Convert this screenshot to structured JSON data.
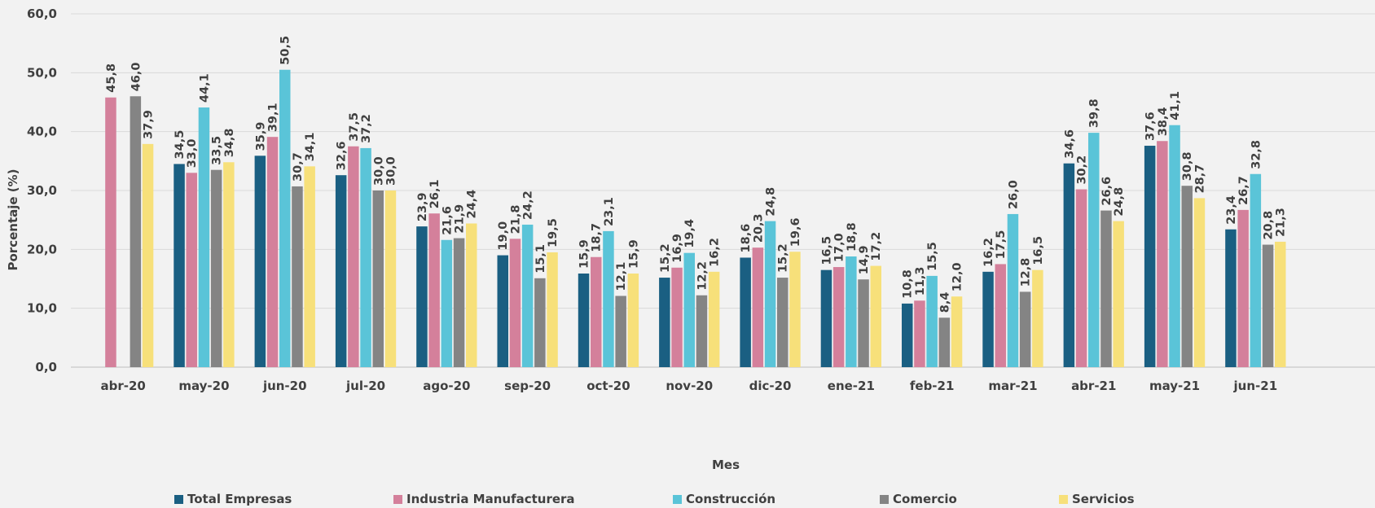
{
  "chart_data": {
    "type": "bar",
    "title": "",
    "xlabel": "Mes",
    "ylabel": "Porcentaje (%)",
    "ylim": [
      0,
      60
    ],
    "yticks": [
      "0,0",
      "10,0",
      "20,0",
      "30,0",
      "40,0",
      "50,0",
      "60,0"
    ],
    "grid": true,
    "legend_position": "bottom",
    "categories": [
      "abr-20",
      "may-20",
      "jun-20",
      "jul-20",
      "ago-20",
      "sep-20",
      "oct-20",
      "nov-20",
      "dic-20",
      "ene-21",
      "feb-21",
      "mar-21",
      "abr-21",
      "may-21",
      "jun-21"
    ],
    "series": [
      {
        "name": "Total Empresas",
        "color": "#1a5f82",
        "values": [
          null,
          34.5,
          35.9,
          32.6,
          23.9,
          19.0,
          15.9,
          15.2,
          18.6,
          16.5,
          10.8,
          16.2,
          34.6,
          37.6,
          23.4
        ]
      },
      {
        "name": "Industria Manufacturera",
        "color": "#d4809b",
        "values": [
          45.8,
          33.0,
          39.1,
          37.5,
          26.1,
          21.8,
          18.7,
          16.9,
          20.3,
          17.0,
          11.3,
          17.5,
          30.2,
          38.4,
          26.7
        ]
      },
      {
        "name": "Construcción",
        "color": "#5ac4d8",
        "values": [
          null,
          44.1,
          50.5,
          37.2,
          21.6,
          24.2,
          23.1,
          19.4,
          24.8,
          18.8,
          15.5,
          26.0,
          39.8,
          41.1,
          32.8
        ]
      },
      {
        "name": "Comercio",
        "color": "#848484",
        "values": [
          46.0,
          33.5,
          30.7,
          30.0,
          21.9,
          15.1,
          12.1,
          12.2,
          15.2,
          14.9,
          8.4,
          12.8,
          26.6,
          30.8,
          20.8
        ]
      },
      {
        "name": "Servicios",
        "color": "#f7e07a",
        "values": [
          37.9,
          34.8,
          34.1,
          30.0,
          24.4,
          19.5,
          15.9,
          16.2,
          19.6,
          17.2,
          12.0,
          16.5,
          24.8,
          28.7,
          21.3
        ]
      }
    ]
  }
}
